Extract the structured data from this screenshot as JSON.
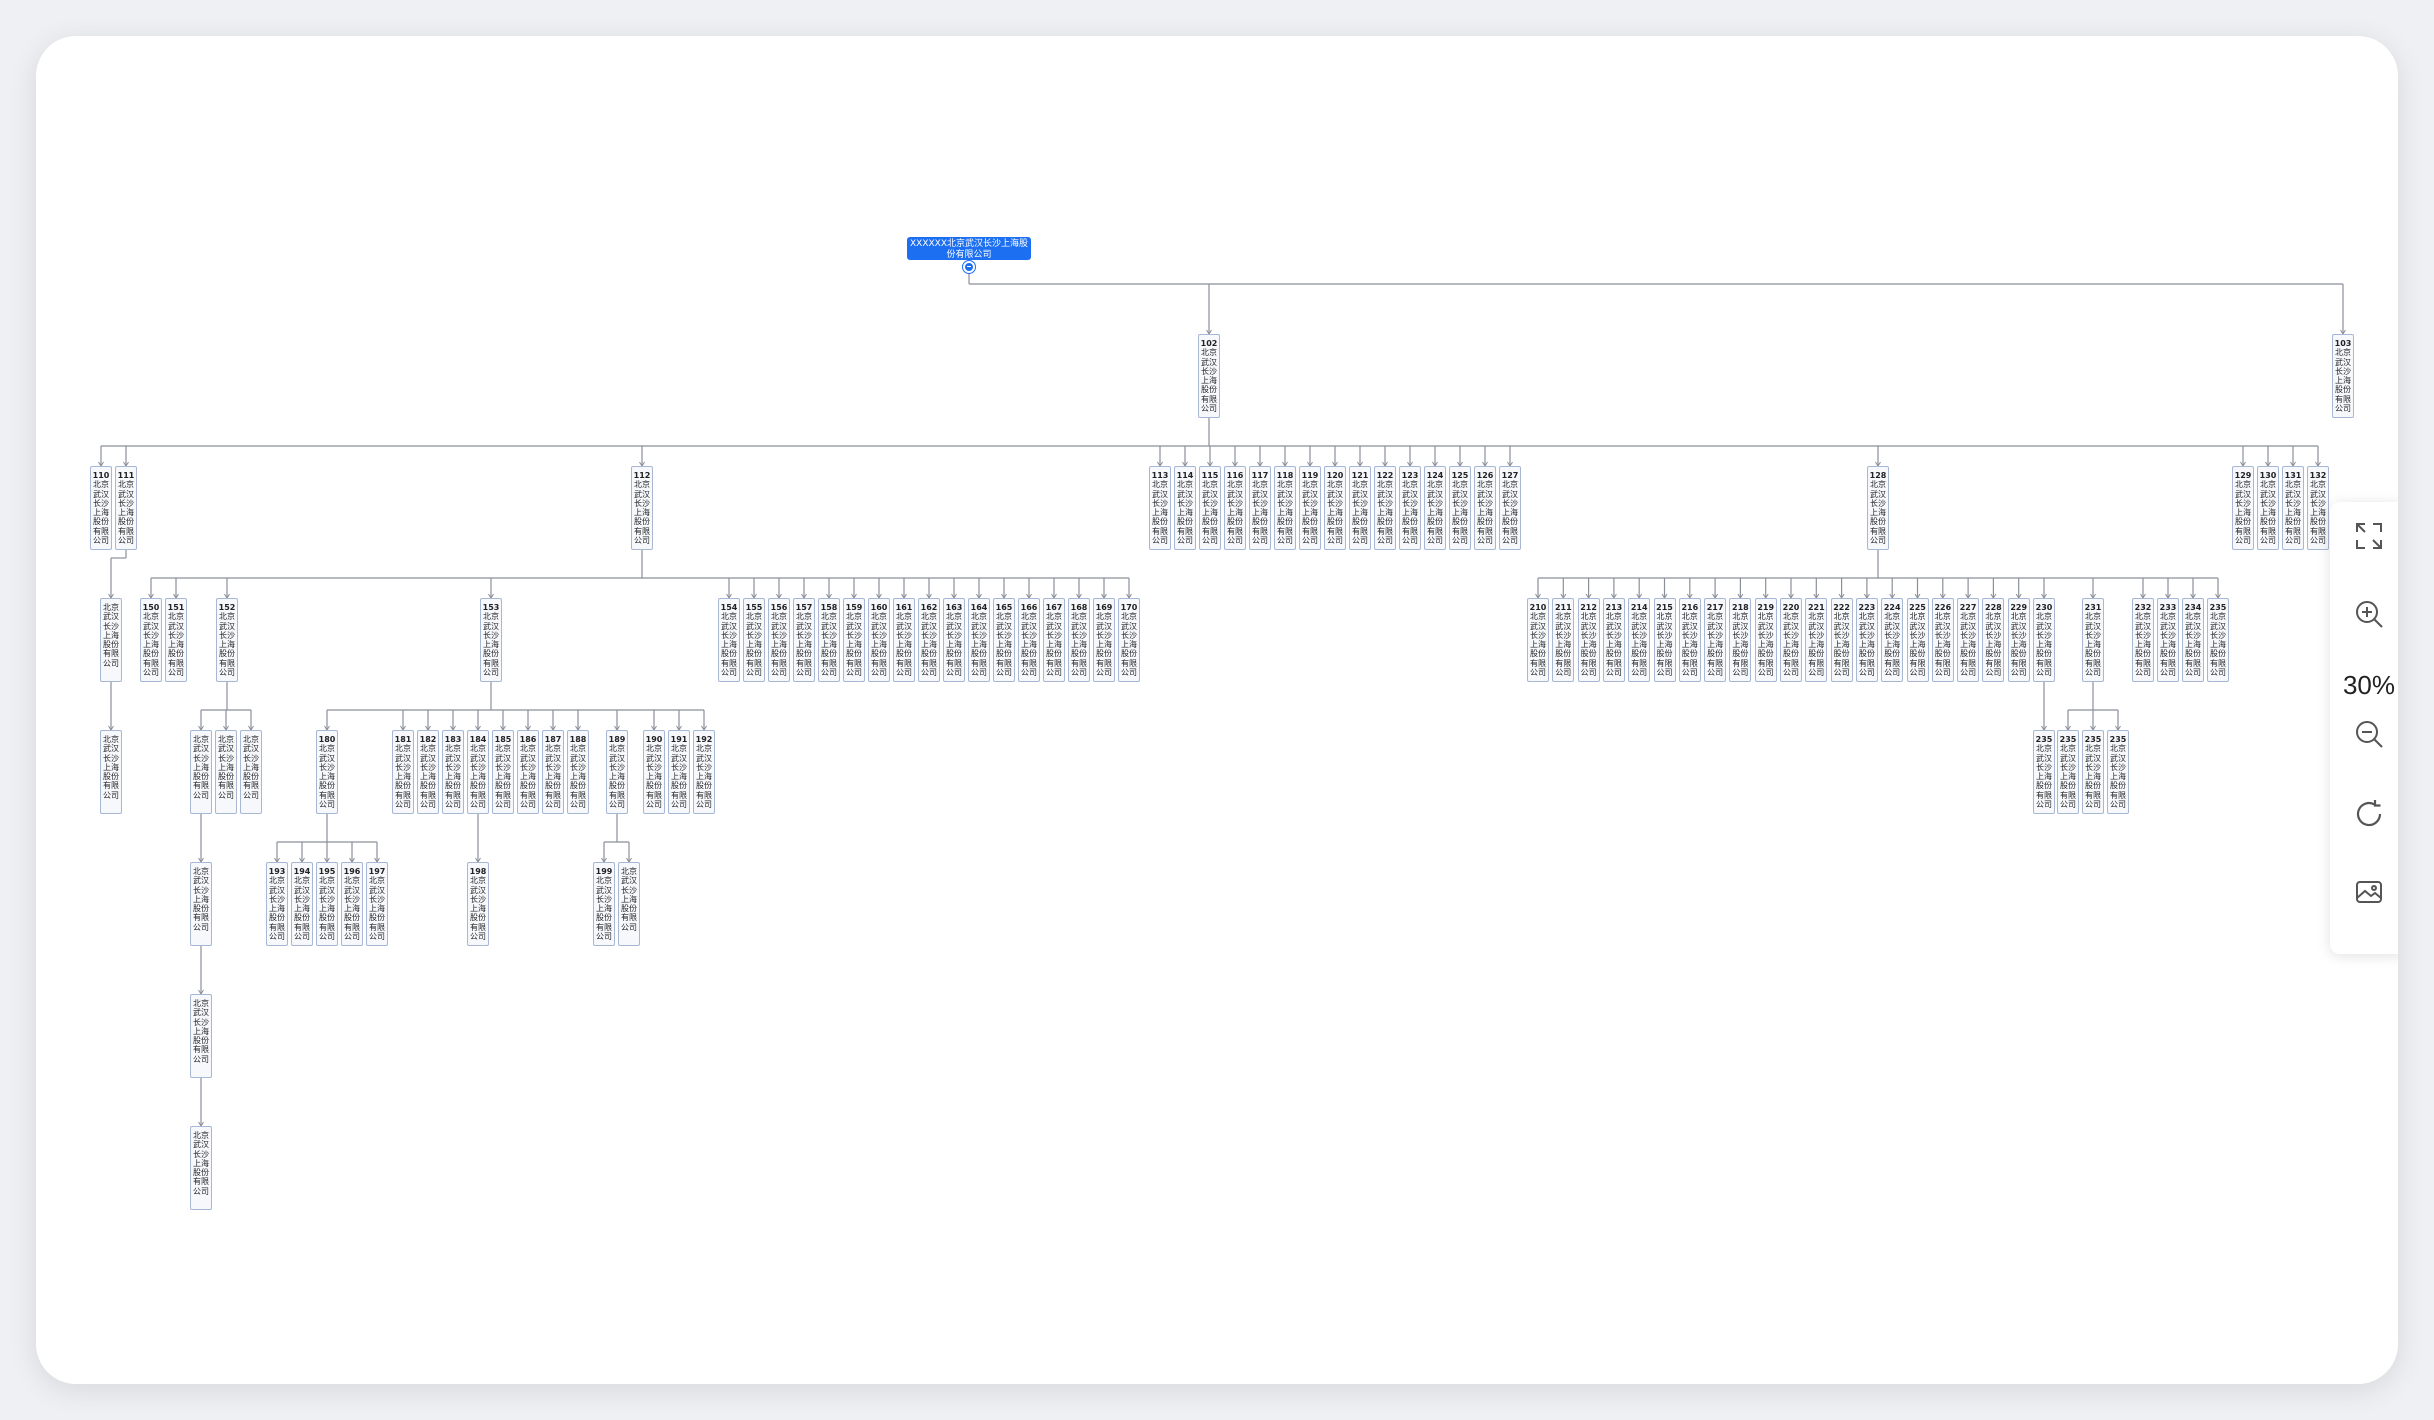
{
  "root": {
    "label": "XXXXXX北京武汉长沙上海股份有限公司"
  },
  "node_name": "北京武汉长沙上海股份有限公司",
  "toolbar": {
    "zoom_label": "30%",
    "buttons": [
      "fit-screen-icon",
      "zoom-in-icon",
      "zoom-out-icon",
      "refresh-icon",
      "export-image-icon"
    ]
  },
  "colors": {
    "accent": "#1d6ff2",
    "node_border": "#a8b8d4",
    "line": "#8a8f99"
  },
  "tree": {
    "id": "102",
    "children": [
      {
        "id": "110"
      },
      {
        "id": "111",
        "children": [
          {
            "id": "",
            "children": [
              {
                "id": ""
              }
            ]
          }
        ]
      },
      {
        "id": "112",
        "children": [
          {
            "id": "150"
          },
          {
            "id": "151"
          },
          {
            "id": "152",
            "children": [
              {
                "id": "",
                "children": [
                  {
                    "id": "",
                    "children": [
                      {
                        "id": "",
                        "children": [
                          {
                            "id": ""
                          }
                        ]
                      }
                    ]
                  }
                ]
              },
              {
                "id": ""
              },
              {
                "id": ""
              }
            ]
          },
          {
            "id": "153",
            "children": [
              {
                "id": "180",
                "children": [
                  {
                    "id": "193"
                  },
                  {
                    "id": "194"
                  },
                  {
                    "id": "195"
                  },
                  {
                    "id": "196"
                  },
                  {
                    "id": "197"
                  }
                ]
              },
              {
                "id": "181"
              },
              {
                "id": "182"
              },
              {
                "id": "183"
              },
              {
                "id": "184",
                "children": [
                  {
                    "id": "198"
                  }
                ]
              },
              {
                "id": "185"
              },
              {
                "id": "186"
              },
              {
                "id": "187"
              },
              {
                "id": "188"
              },
              {
                "id": "189",
                "children": [
                  {
                    "id": "199"
                  },
                  {
                    "id": ""
                  }
                ]
              },
              {
                "id": "190"
              },
              {
                "id": "191"
              },
              {
                "id": "192"
              }
            ]
          },
          {
            "id": "154"
          },
          {
            "id": "155"
          },
          {
            "id": "156"
          },
          {
            "id": "157"
          },
          {
            "id": "158"
          },
          {
            "id": "159"
          },
          {
            "id": "160"
          },
          {
            "id": "161"
          },
          {
            "id": "162"
          },
          {
            "id": "163"
          },
          {
            "id": "164"
          },
          {
            "id": "165"
          },
          {
            "id": "166"
          },
          {
            "id": "167"
          },
          {
            "id": "168"
          },
          {
            "id": "169"
          },
          {
            "id": "170"
          }
        ]
      },
      {
        "id": "113"
      },
      {
        "id": "114"
      },
      {
        "id": "115"
      },
      {
        "id": "116"
      },
      {
        "id": "117"
      },
      {
        "id": "118"
      },
      {
        "id": "119"
      },
      {
        "id": "120"
      },
      {
        "id": "121"
      },
      {
        "id": "122"
      },
      {
        "id": "123"
      },
      {
        "id": "124"
      },
      {
        "id": "125"
      },
      {
        "id": "126"
      },
      {
        "id": "127"
      },
      {
        "id": "128",
        "children": [
          {
            "id": "210"
          },
          {
            "id": "211"
          },
          {
            "id": "212"
          },
          {
            "id": "213"
          },
          {
            "id": "214"
          },
          {
            "id": "215"
          },
          {
            "id": "216"
          },
          {
            "id": "217"
          },
          {
            "id": "218"
          },
          {
            "id": "219"
          },
          {
            "id": "220"
          },
          {
            "id": "221"
          },
          {
            "id": "222"
          },
          {
            "id": "223"
          },
          {
            "id": "224"
          },
          {
            "id": "225"
          },
          {
            "id": "226"
          },
          {
            "id": "227"
          },
          {
            "id": "228"
          },
          {
            "id": "229"
          },
          {
            "id": "230",
            "children": [
              {
                "id": "235"
              }
            ]
          },
          {
            "id": "231",
            "children": [
              {
                "id": "235"
              },
              {
                "id": "235"
              },
              {
                "id": "235"
              }
            ]
          },
          {
            "id": "232"
          },
          {
            "id": "233"
          },
          {
            "id": "234"
          },
          {
            "id": "235"
          }
        ]
      },
      {
        "id": "129"
      },
      {
        "id": "130"
      },
      {
        "id": "131"
      },
      {
        "id": "132"
      }
    ]
  },
  "sibling": {
    "id": "103"
  }
}
